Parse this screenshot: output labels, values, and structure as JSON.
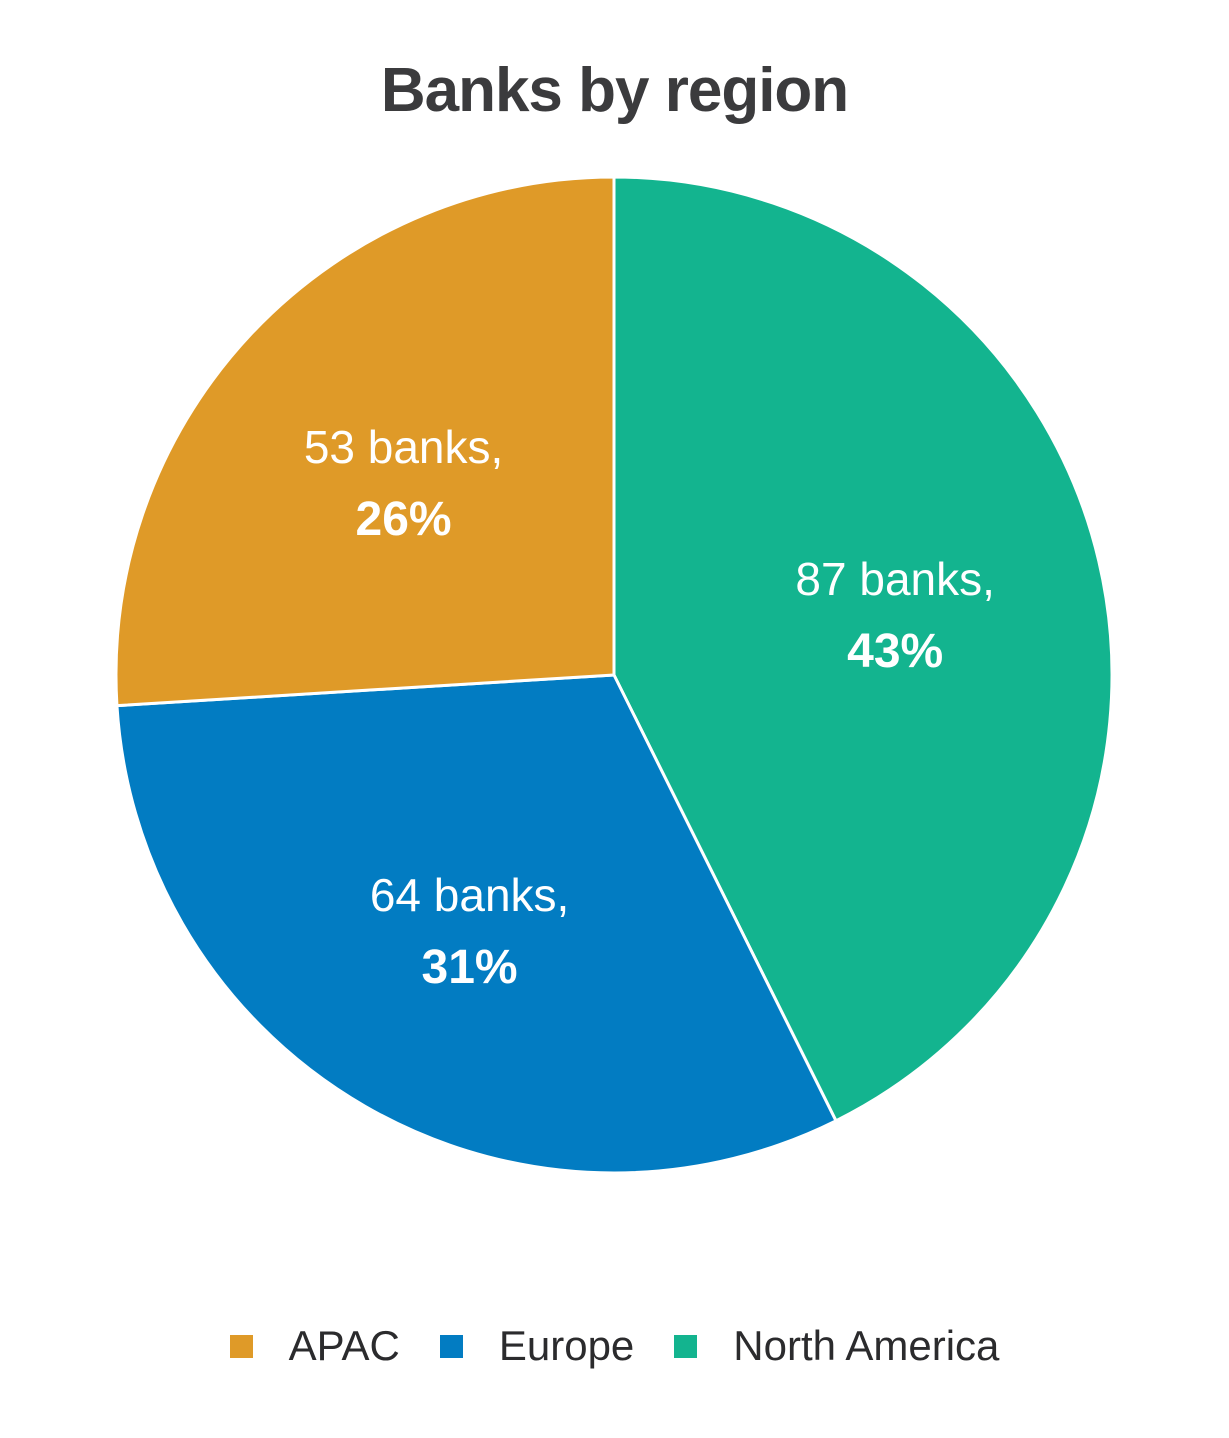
{
  "chart_data": {
    "type": "pie",
    "title": "Banks by region",
    "slices": [
      {
        "name": "North America",
        "value": 87,
        "label": "87 banks,",
        "percent_label": "43%",
        "color": "#13b48f"
      },
      {
        "name": "Europe",
        "value": 64,
        "label": "64 banks,",
        "percent_label": "31%",
        "color": "#027cc2"
      },
      {
        "name": "APAC",
        "value": 53,
        "label": "53 banks,",
        "percent_label": "26%",
        "color": "#df9a28"
      }
    ],
    "legend": [
      {
        "name": "APAC",
        "color": "#df9a28"
      },
      {
        "name": "Europe",
        "color": "#027cc2"
      },
      {
        "name": "North America",
        "color": "#13b48f"
      }
    ],
    "legend_position": "bottom"
  }
}
